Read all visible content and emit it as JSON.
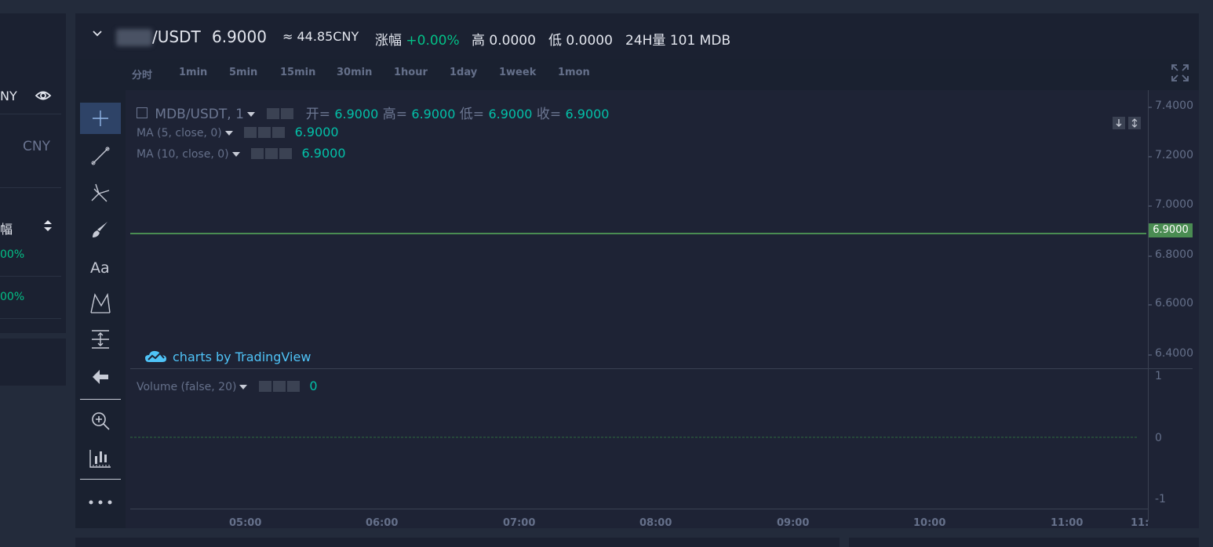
{
  "left": {
    "currency_suffix": "NY",
    "cny_label": "CNY",
    "sort_label": "幅",
    "rows": [
      {
        "change": "00%"
      },
      {
        "change": "00%"
      }
    ]
  },
  "header": {
    "pair": "/USDT",
    "price": "6.9000",
    "cny_value": "≈ 44.85CNY",
    "change_label": "涨幅",
    "change_value": "+0.00%",
    "high_label": "高",
    "high_value": "0.0000",
    "low_label": "低",
    "low_value": "0.0000",
    "vol_label": "24H量",
    "vol_value": "101 MDB"
  },
  "timeframes": [
    "分时",
    "1min",
    "5min",
    "15min",
    "30min",
    "1hour",
    "1day",
    "1week",
    "1mon"
  ],
  "legend": {
    "symbol": "MDB/USDT, 1",
    "open_label": "开=",
    "open": "6.9000",
    "high_label": "高=",
    "high": "6.9000",
    "low_label": "低=",
    "low": "6.9000",
    "close_label": "收=",
    "close": "6.9000",
    "ma5_label": "MA (5, close, 0)",
    "ma5_value": "6.9000",
    "ma10_label": "MA (10, close, 0)",
    "ma10_value": "6.9000",
    "volume_label": "Volume (false, 20)",
    "volume_value": "0"
  },
  "branding": {
    "text": "charts by TradingView"
  },
  "price_axis": [
    "7.4000",
    "7.2000",
    "7.0000",
    "6.8000",
    "6.6000",
    "6.4000"
  ],
  "current_price": "6.9000",
  "volume_axis": [
    "1",
    "0",
    "-1"
  ],
  "time_axis": [
    "05:00",
    "06:00",
    "07:00",
    "08:00",
    "09:00",
    "10:00",
    "11:00",
    "11:"
  ],
  "colors": {
    "up": "#03c087",
    "price_line": "#4a8c52",
    "accent": "#2e4367"
  },
  "chart_data": {
    "type": "line",
    "x": [
      "05:00",
      "06:00",
      "07:00",
      "08:00",
      "09:00",
      "10:00",
      "11:00"
    ],
    "series": [
      {
        "values": [
          6.9,
          6.9,
          6.9,
          6.9,
          6.9,
          6.9,
          6.9
        ]
      }
    ],
    "ylim": [
      6.35,
      7.45
    ],
    "volume": [
      0,
      0,
      0,
      0,
      0,
      0,
      0
    ]
  }
}
